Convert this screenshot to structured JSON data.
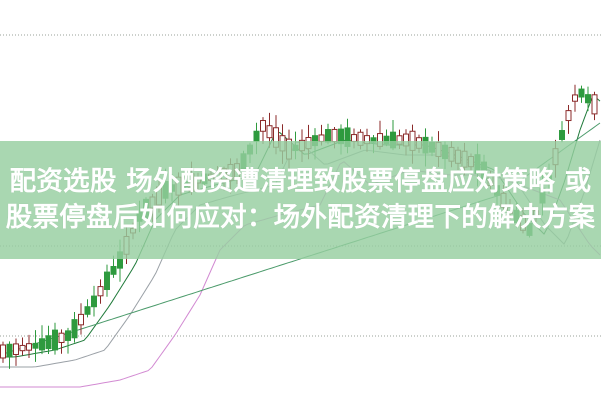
{
  "article": {
    "title_line1": "配资选股 场外配资遭清理致股票停盘应对策略 或",
    "title_line2": "股票停盘后如何应对：场外配资清理下的解决方案"
  },
  "colors": {
    "banner": "#96cea0",
    "candle_up": "#8b2a2a",
    "candle_down": "#2e9a3e",
    "ma_short": "#1f7a3a",
    "ma_mid": "#9aa0a6",
    "ma_long": "#d28ad2",
    "ma_longest": "#4a9a6a",
    "grid": "#9aa09a"
  }
}
